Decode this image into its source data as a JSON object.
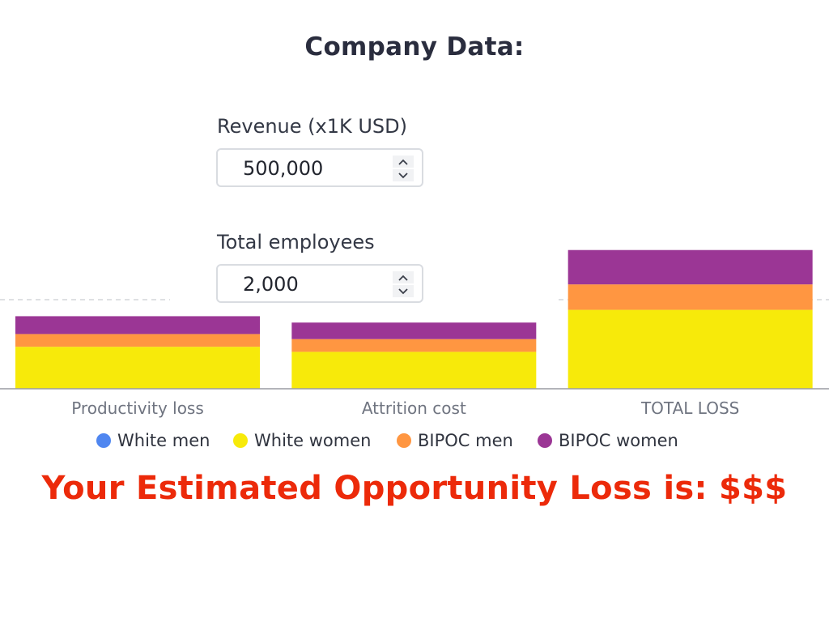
{
  "page": {
    "title": "Company Data:",
    "revenue": {
      "label": "Revenue (x1K USD)",
      "value": "500,000"
    },
    "employees": {
      "label": "Total employees",
      "value": "2,000"
    },
    "result_text": "Your Estimated Opportunity Loss is: $$$"
  },
  "icons": {
    "stepper_up": "chevron-up-icon",
    "stepper_down": "chevron-down-icon"
  },
  "colors": {
    "white_men": "#4f86f0",
    "white_women": "#f7ea0a",
    "bipoc_men": "#ff9641",
    "bipoc_women": "#9b3695",
    "result": "#ec2a0a"
  },
  "chart_data": {
    "type": "bar",
    "stacked": true,
    "categories": [
      "Productivity loss",
      "Attrition cost",
      "TOTAL LOSS"
    ],
    "series": [
      {
        "name": "White men",
        "values": [
          0,
          0,
          0
        ]
      },
      {
        "name": "White women",
        "values": [
          33,
          29,
          62
        ]
      },
      {
        "name": "BIPOC men",
        "values": [
          10,
          10,
          20
        ]
      },
      {
        "name": "BIPOC women",
        "values": [
          14,
          13,
          27
        ]
      }
    ],
    "ylim": [
      0,
      140
    ],
    "grid": true,
    "legend_position": "bottom"
  }
}
